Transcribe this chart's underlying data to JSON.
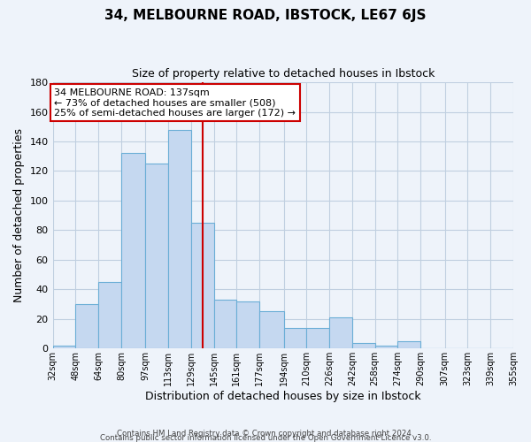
{
  "title": "34, MELBOURNE ROAD, IBSTOCK, LE67 6JS",
  "subtitle": "Size of property relative to detached houses in Ibstock",
  "xlabel": "Distribution of detached houses by size in Ibstock",
  "ylabel": "Number of detached properties",
  "bin_labels": [
    "32sqm",
    "48sqm",
    "64sqm",
    "80sqm",
    "97sqm",
    "113sqm",
    "129sqm",
    "145sqm",
    "161sqm",
    "177sqm",
    "194sqm",
    "210sqm",
    "226sqm",
    "242sqm",
    "258sqm",
    "274sqm",
    "290sqm",
    "307sqm",
    "323sqm",
    "339sqm",
    "355sqm"
  ],
  "bar_values": [
    2,
    30,
    45,
    132,
    125,
    148,
    85,
    33,
    32,
    25,
    14,
    14,
    21,
    4,
    2,
    5,
    0,
    0,
    0,
    0,
    1
  ],
  "bar_color": "#c5d8f0",
  "bar_edge_color": "#6baed6",
  "grid_color": "#c0cfe0",
  "background_color": "#eef3fa",
  "vline_color": "#cc0000",
  "bin_edges_sqm": [
    32,
    48,
    64,
    80,
    97,
    113,
    129,
    145,
    161,
    177,
    194,
    210,
    226,
    242,
    258,
    274,
    290,
    307,
    323,
    339,
    355
  ],
  "property_sqm": 137,
  "annotation_title": "34 MELBOURNE ROAD: 137sqm",
  "annotation_line1": "← 73% of detached houses are smaller (508)",
  "annotation_line2": "25% of semi-detached houses are larger (172) →",
  "annotation_box_color": "#ffffff",
  "annotation_box_edge": "#cc0000",
  "ylim": [
    0,
    180
  ],
  "yticks": [
    0,
    20,
    40,
    60,
    80,
    100,
    120,
    140,
    160,
    180
  ],
  "footer1": "Contains HM Land Registry data © Crown copyright and database right 2024.",
  "footer2": "Contains public sector information licensed under the Open Government Licence v3.0."
}
